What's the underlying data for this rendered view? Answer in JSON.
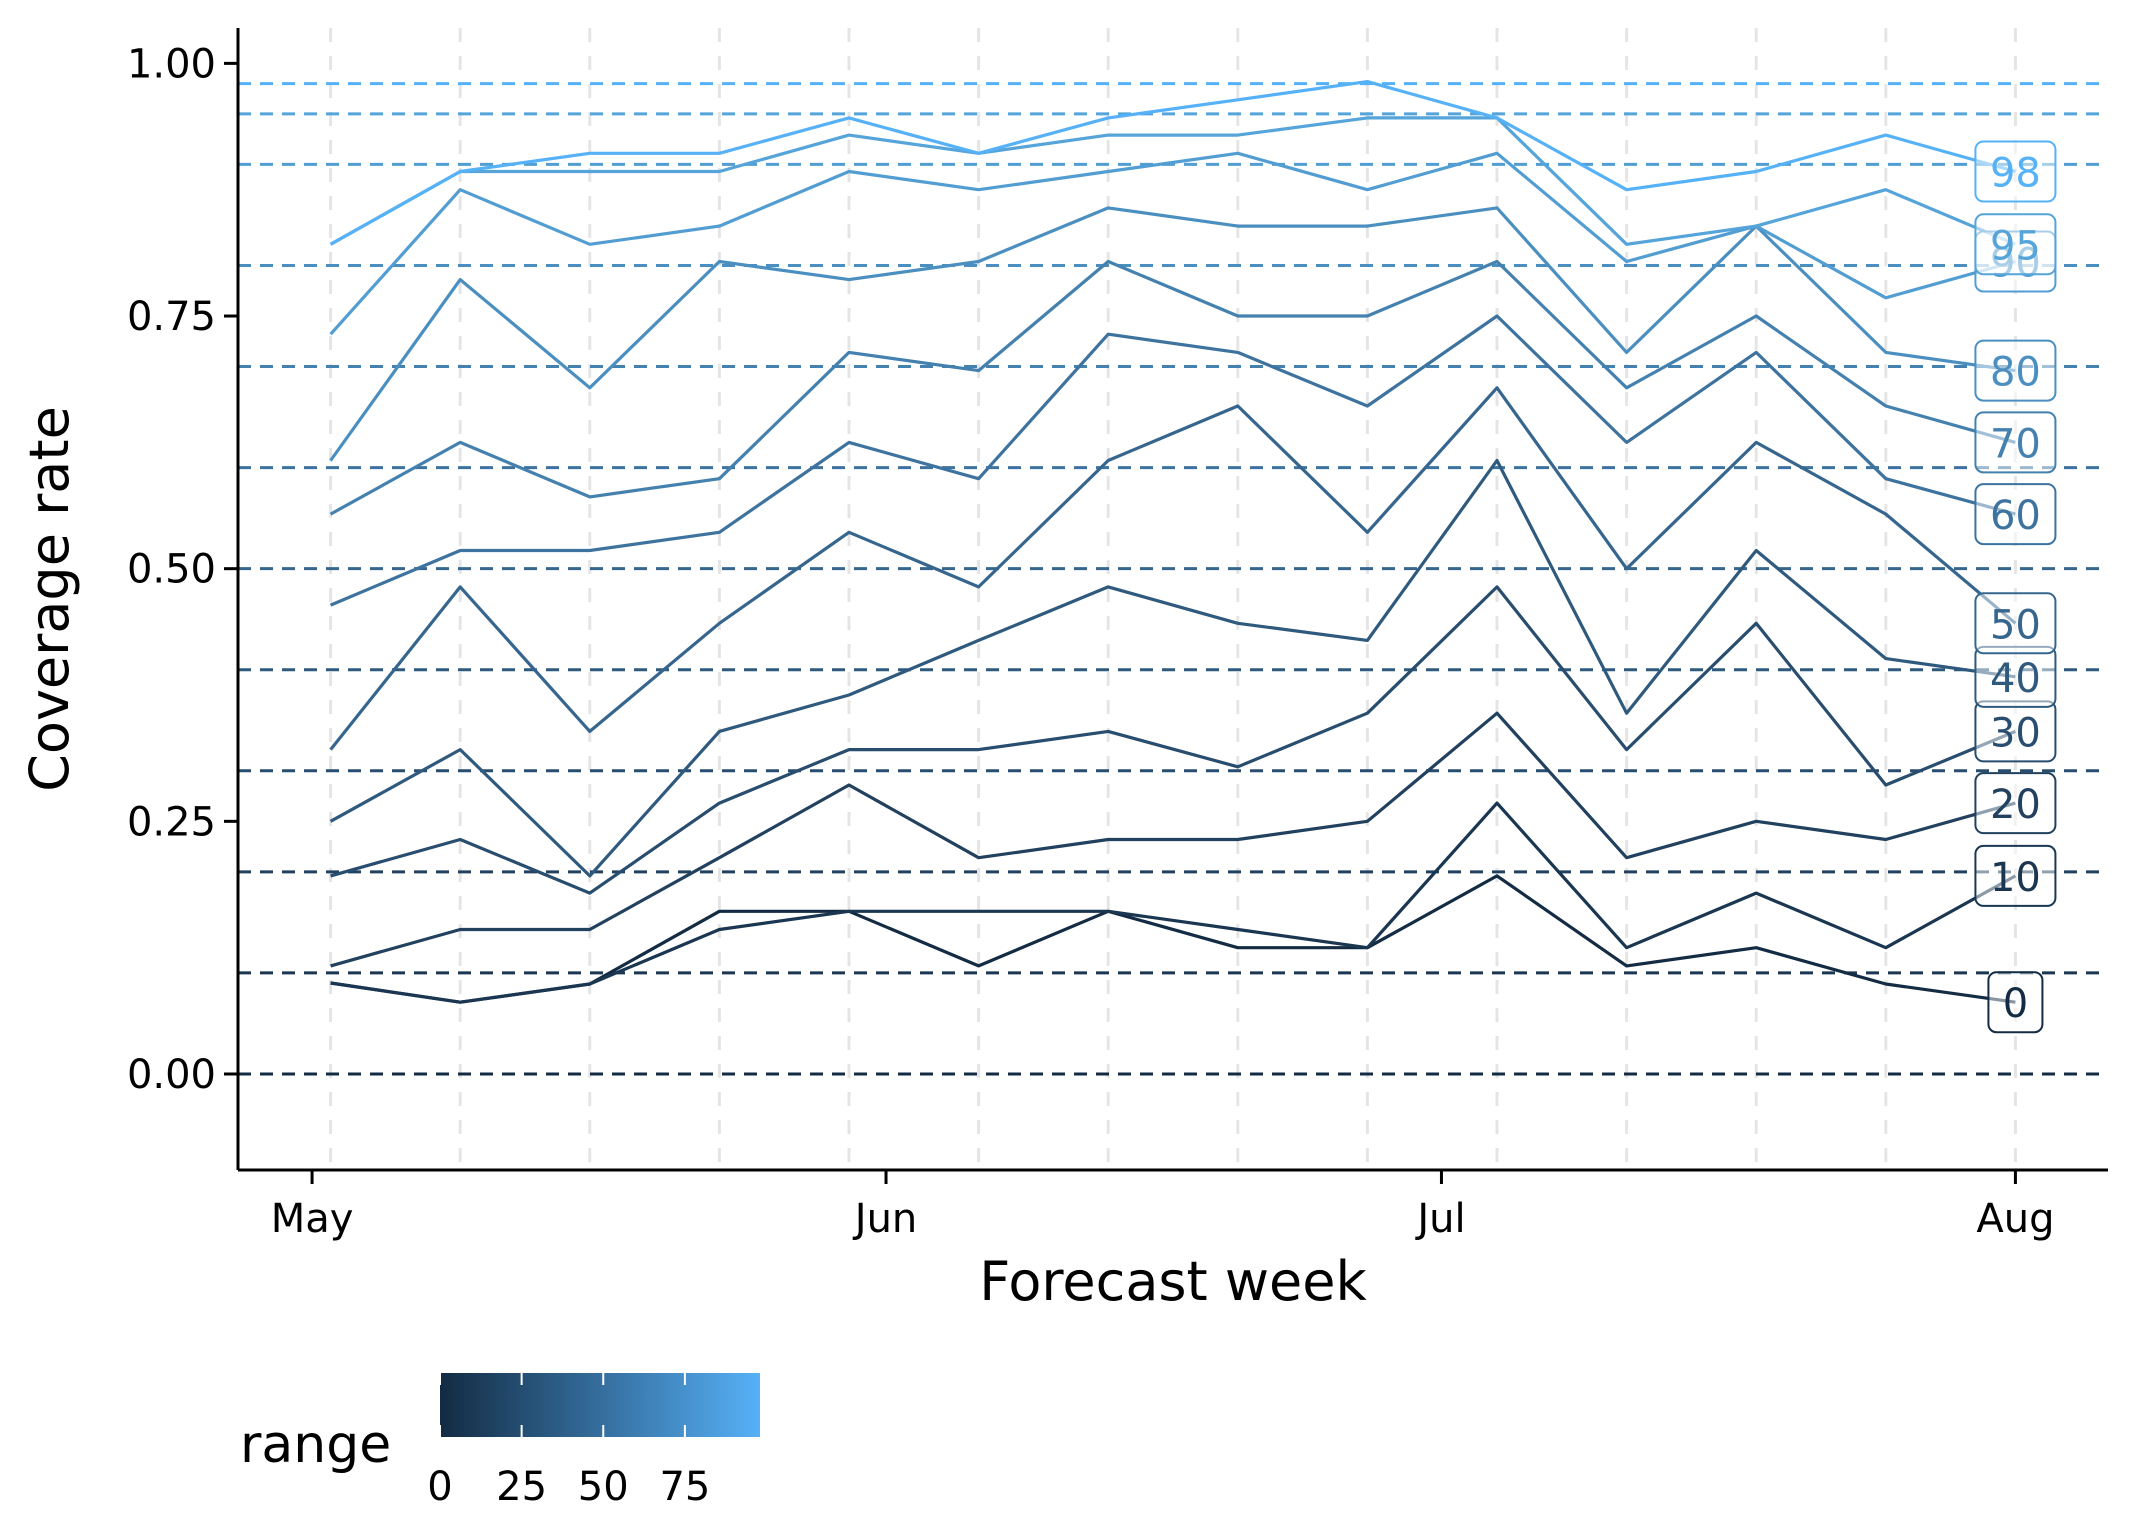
{
  "chart_data": {
    "type": "line",
    "xlabel": "Forecast week",
    "ylabel": "Coverage rate",
    "x": [
      "2020-05-02",
      "2020-05-09",
      "2020-05-16",
      "2020-05-23",
      "2020-05-30",
      "2020-06-06",
      "2020-06-13",
      "2020-06-20",
      "2020-06-27",
      "2020-07-04",
      "2020-07-11",
      "2020-07-18",
      "2020-07-25",
      "2020-08-01"
    ],
    "xlim": [
      "2020-04-27",
      "2020-08-06"
    ],
    "x_ticks": [
      {
        "date": "2020-05-01",
        "label": "May"
      },
      {
        "date": "2020-06-01",
        "label": "Jun"
      },
      {
        "date": "2020-07-01",
        "label": "Jul"
      },
      {
        "date": "2020-08-01",
        "label": "Aug"
      }
    ],
    "ylim": [
      -0.095,
      2.1
    ],
    "ylim_view": [
      -0.095,
      1.035
    ],
    "y_ticks": [
      {
        "value": 0,
        "label": "0.00"
      },
      {
        "value": 0.25,
        "label": "0.25"
      },
      {
        "value": 0.5,
        "label": "0.50"
      },
      {
        "value": 0.75,
        "label": "0.75"
      },
      {
        "value": 1,
        "label": "1.00"
      }
    ],
    "grid": {
      "vertical_dashed": true,
      "color": "#e5e5e5"
    },
    "series": [
      {
        "name": "0",
        "range": 0,
        "nominal": 0.0,
        "label": "0",
        "color": "#132b43",
        "values": [
          0.09,
          0.071,
          0.089,
          0.161,
          0.161,
          0.107,
          0.161,
          0.125,
          0.125,
          0.196,
          0.107,
          0.125,
          0.089,
          0.071
        ]
      },
      {
        "name": "10",
        "range": 10,
        "nominal": 0.1,
        "label": "10",
        "color": "#1a3651",
        "values": [
          0.09,
          0.071,
          0.089,
          0.143,
          0.161,
          0.161,
          0.161,
          0.143,
          0.125,
          0.268,
          0.125,
          0.179,
          0.125,
          0.196
        ]
      },
      {
        "name": "20",
        "range": 20,
        "nominal": 0.2,
        "label": "20",
        "color": "#21415f",
        "values": [
          0.107,
          0.143,
          0.143,
          0.214,
          0.286,
          0.214,
          0.232,
          0.232,
          0.25,
          0.357,
          0.214,
          0.25,
          0.232,
          0.268
        ]
      },
      {
        "name": "30",
        "range": 30,
        "nominal": 0.3,
        "label": "30",
        "color": "#284d6e",
        "values": [
          0.196,
          0.232,
          0.179,
          0.268,
          0.321,
          0.321,
          0.339,
          0.304,
          0.357,
          0.482,
          0.321,
          0.446,
          0.286,
          0.339
        ]
      },
      {
        "name": "40",
        "range": 40,
        "nominal": 0.4,
        "label": "40",
        "color": "#2f5a7e",
        "values": [
          0.25,
          0.321,
          0.196,
          0.339,
          0.375,
          0.429,
          0.482,
          0.446,
          0.429,
          0.607,
          0.357,
          0.518,
          0.411,
          0.393
        ]
      },
      {
        "name": "50",
        "range": 50,
        "nominal": 0.5,
        "label": "50",
        "color": "#36668e",
        "values": [
          0.321,
          0.482,
          0.339,
          0.446,
          0.536,
          0.482,
          0.607,
          0.661,
          0.536,
          0.679,
          0.5,
          0.625,
          0.554,
          0.446
        ]
      },
      {
        "name": "60",
        "range": 60,
        "nominal": 0.6,
        "label": "60",
        "color": "#3d739e",
        "values": [
          0.464,
          0.518,
          0.518,
          0.536,
          0.625,
          0.589,
          0.732,
          0.714,
          0.661,
          0.75,
          0.625,
          0.714,
          0.589,
          0.554
        ]
      },
      {
        "name": "70",
        "range": 70,
        "nominal": 0.7,
        "label": "70",
        "color": "#4481af",
        "values": [
          0.554,
          0.625,
          0.571,
          0.589,
          0.714,
          0.696,
          0.804,
          0.75,
          0.75,
          0.804,
          0.679,
          0.75,
          0.661,
          0.625
        ]
      },
      {
        "name": "80",
        "range": 80,
        "nominal": 0.8,
        "label": "80",
        "color": "#4b8fc0",
        "values": [
          0.607,
          0.786,
          0.679,
          0.804,
          0.786,
          0.804,
          0.857,
          0.839,
          0.839,
          0.857,
          0.714,
          0.839,
          0.714,
          0.696
        ]
      },
      {
        "name": "90",
        "range": 90,
        "nominal": 0.9,
        "label": "90",
        "color": "#529dd1",
        "values": [
          0.732,
          0.875,
          0.821,
          0.839,
          0.893,
          0.875,
          0.893,
          0.911,
          0.875,
          0.911,
          0.804,
          0.839,
          0.768,
          0.804
        ]
      },
      {
        "name": "95",
        "range": 95,
        "nominal": 0.95,
        "label": "95",
        "color": "#55a4da",
        "values": [
          0.821,
          0.893,
          0.893,
          0.893,
          0.929,
          0.911,
          0.929,
          0.929,
          0.946,
          0.946,
          0.821,
          0.839,
          0.875,
          0.821
        ]
      },
      {
        "name": "98",
        "range": 98,
        "nominal": 0.98,
        "label": "98",
        "color": "#56b1f7",
        "values": [
          0.821,
          0.893,
          0.911,
          0.911,
          0.946,
          0.911,
          0.946,
          0.964,
          0.982,
          0.946,
          0.875,
          0.893,
          0.929,
          0.893
        ]
      }
    ],
    "legend": {
      "title": "range",
      "placement": "bottom-left",
      "type": "colorbar",
      "low_color": "#132b43",
      "high_color": "#56b1f7",
      "range": [
        0,
        98
      ],
      "ticks": [
        {
          "value": 0,
          "label": "0"
        },
        {
          "value": 25,
          "label": "25"
        },
        {
          "value": 50,
          "label": "50"
        },
        {
          "value": 75,
          "label": "75"
        }
      ]
    }
  }
}
